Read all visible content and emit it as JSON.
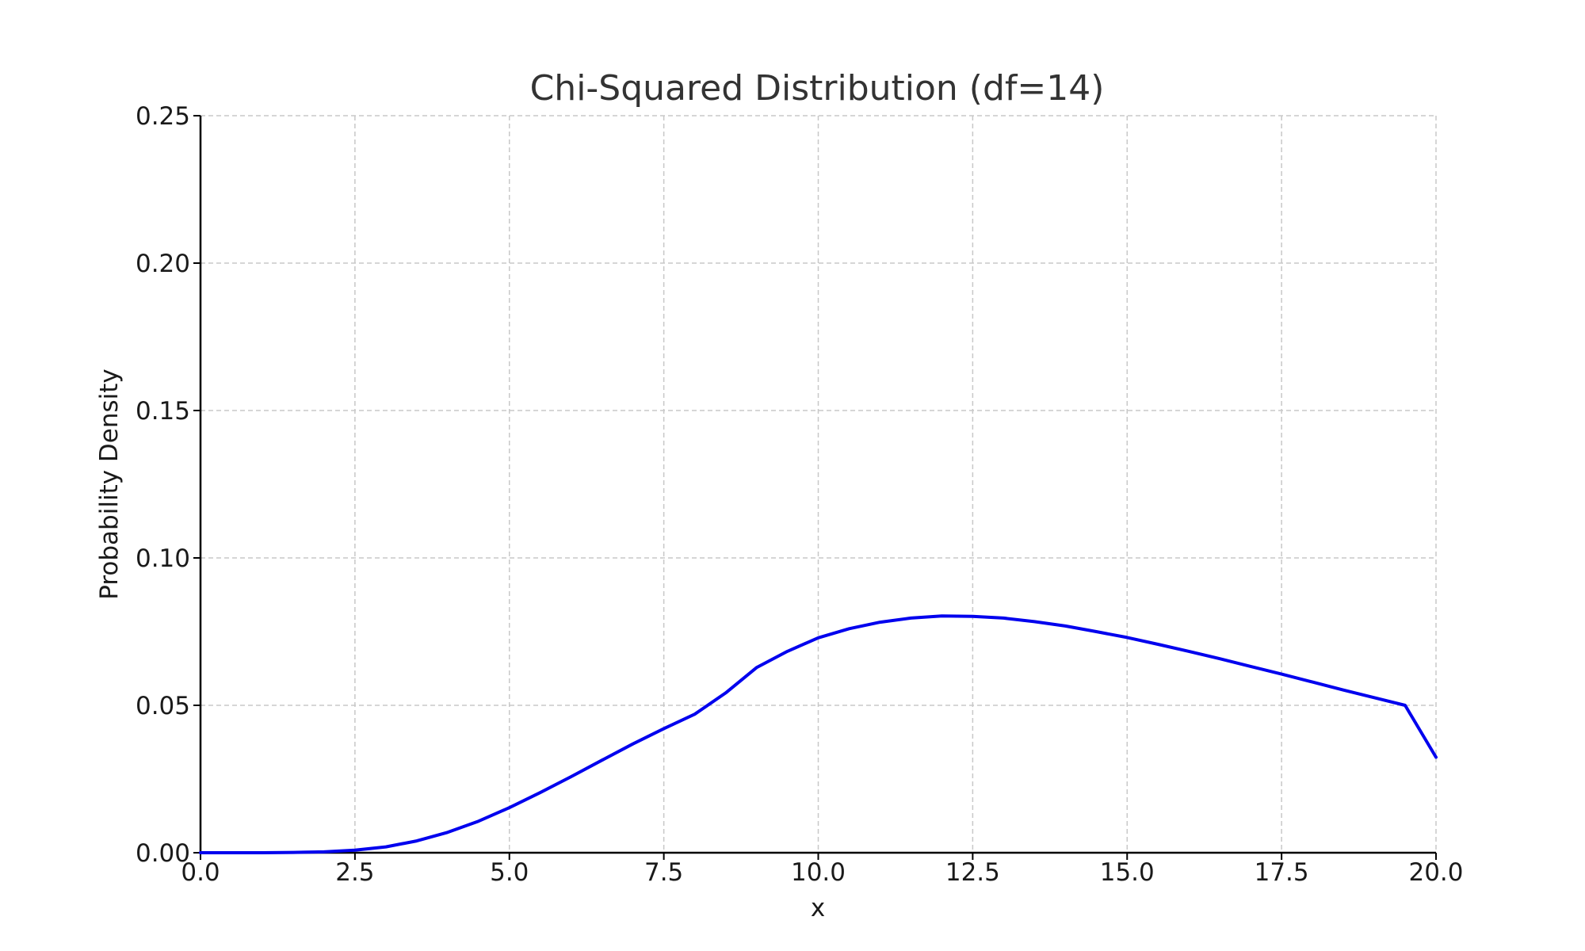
{
  "chart_data": {
    "type": "line",
    "title": "Chi-Squared Distribution (df=14)",
    "xlabel": "x",
    "ylabel": "Probability Density",
    "xlim": [
      0,
      20
    ],
    "ylim": [
      0,
      0.25
    ],
    "xticks": [
      "0.0",
      "2.5",
      "5.0",
      "7.5",
      "10.0",
      "12.5",
      "15.0",
      "17.5",
      "20.0"
    ],
    "yticks": [
      "0.00",
      "0.05",
      "0.10",
      "0.15",
      "0.20",
      "0.25"
    ],
    "grid": true,
    "series": [
      {
        "color": "#0000ee",
        "x": [
          0,
          1,
          1.5,
          2,
          2.5,
          3,
          3.5,
          4,
          4.5,
          5,
          5.5,
          6,
          6.5,
          7,
          7.5,
          8,
          8.5,
          9,
          9.5,
          10,
          10.5,
          11,
          11.5,
          12,
          12.5,
          13,
          13.5,
          14,
          14.5,
          15,
          15.5,
          16,
          16.5,
          17,
          17.5,
          18,
          18.5,
          19,
          19.5,
          20
        ],
        "y": [
          0,
          0.0,
          0.0001,
          0.0003,
          0.0009,
          0.002,
          0.004,
          0.0069,
          0.0107,
          0.0153,
          0.0204,
          0.0258,
          0.0314,
          0.0369,
          0.0421,
          0.047,
          0.0542,
          0.0628,
          0.0683,
          0.0729,
          0.076,
          0.0782,
          0.0796,
          0.0803,
          0.0802,
          0.0796,
          0.0784,
          0.0769,
          0.075,
          0.073,
          0.0707,
          0.0683,
          0.0658,
          0.0632,
          0.0606,
          0.0579,
          0.0552,
          0.0526,
          0.05,
          0.0324
        ]
      }
    ]
  }
}
